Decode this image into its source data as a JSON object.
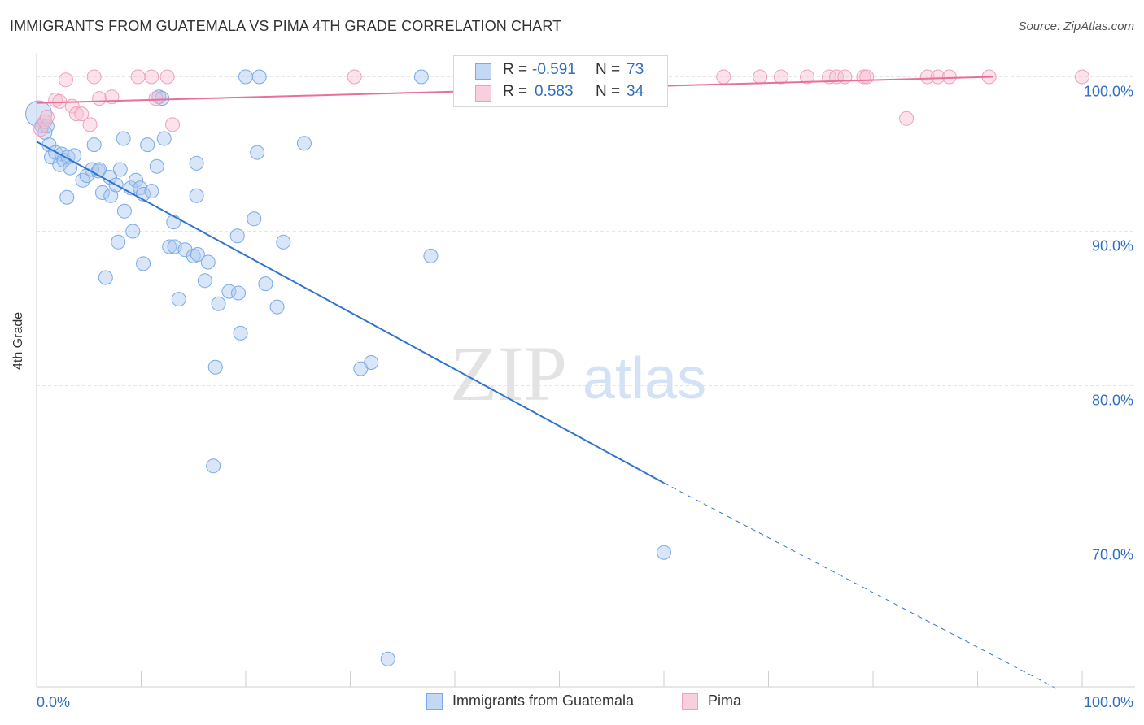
{
  "header": {
    "title": "IMMIGRANTS FROM GUATEMALA VS PIMA 4TH GRADE CORRELATION CHART",
    "source": "Source: ZipAtlas.com"
  },
  "watermark": {
    "zip": "ZIP",
    "atlas": "atlas"
  },
  "legend": {
    "r_label": "R =",
    "n_label": "N =",
    "rows": [
      {
        "series": "Immigrants from Guatemala",
        "r": "-0.591",
        "n": "73",
        "color": "#7aaae8"
      },
      {
        "series": "Pima",
        "r": "0.583",
        "n": "34",
        "color": "#f0a0bc"
      }
    ]
  },
  "bottom_legend": [
    {
      "label": "Immigrants from Guatemala",
      "color": "#7aaae8"
    },
    {
      "label": "Pima",
      "color": "#f0a0bc"
    }
  ],
  "chart_data": {
    "type": "scatter",
    "title": "IMMIGRANTS FROM GUATEMALA VS PIMA 4TH GRADE CORRELATION CHART",
    "xlabel": "",
    "ylabel": "4th Grade",
    "xlim": [
      0,
      100
    ],
    "ylim": [
      60.5,
      101.5
    ],
    "x_tick_labels": [
      "0.0%",
      "100.0%"
    ],
    "y_ticks": [
      70,
      80,
      90,
      100
    ],
    "y_tick_labels": [
      "70.0%",
      "80.0%",
      "90.0%",
      "100.0%"
    ],
    "grid": true,
    "legend_position": "top-center",
    "series": [
      {
        "name": "Immigrants from Guatemala",
        "color": "#7aaae8",
        "line_color": "#2f74d0",
        "trend": {
          "x": [
            0,
            60
          ],
          "y": [
            95.8,
            73.7
          ],
          "dashed_to": [
            97.5,
            60.4
          ]
        },
        "points": [
          [
            0.2,
            97.6
          ],
          [
            0.5,
            96.8
          ],
          [
            0.8,
            96.4
          ],
          [
            1.2,
            95.6
          ],
          [
            1.4,
            94.8
          ],
          [
            1.8,
            95.1
          ],
          [
            2.2,
            94.3
          ],
          [
            2.4,
            95.0
          ],
          [
            2.6,
            94.6
          ],
          [
            3.0,
            94.8
          ],
          [
            3.2,
            94.1
          ],
          [
            3.6,
            94.9
          ],
          [
            4.4,
            93.3
          ],
          [
            4.8,
            93.6
          ],
          [
            5.3,
            94.0
          ],
          [
            5.5,
            95.6
          ],
          [
            5.9,
            93.9
          ],
          [
            6.0,
            94.0
          ],
          [
            6.3,
            92.5
          ],
          [
            7.0,
            93.5
          ],
          [
            7.1,
            92.3
          ],
          [
            7.6,
            93.0
          ],
          [
            8.0,
            94.0
          ],
          [
            8.3,
            96.0
          ],
          [
            8.4,
            91.3
          ],
          [
            9.0,
            92.8
          ],
          [
            9.2,
            90.0
          ],
          [
            9.5,
            93.3
          ],
          [
            9.9,
            92.8
          ],
          [
            10.2,
            92.4
          ],
          [
            10.6,
            95.6
          ],
          [
            11.0,
            92.6
          ],
          [
            11.5,
            94.2
          ],
          [
            11.7,
            98.7
          ],
          [
            12.0,
            98.6
          ],
          [
            12.2,
            96.0
          ],
          [
            12.7,
            89.0
          ],
          [
            13.1,
            90.6
          ],
          [
            13.2,
            89.0
          ],
          [
            13.6,
            85.6
          ],
          [
            14.2,
            88.8
          ],
          [
            15.0,
            88.4
          ],
          [
            15.3,
            92.3
          ],
          [
            15.3,
            94.4
          ],
          [
            15.4,
            88.5
          ],
          [
            16.1,
            86.8
          ],
          [
            16.4,
            88.0
          ],
          [
            16.9,
            74.8
          ],
          [
            17.1,
            81.2
          ],
          [
            17.4,
            85.3
          ],
          [
            18.4,
            86.1
          ],
          [
            19.3,
            86.0
          ],
          [
            19.2,
            89.7
          ],
          [
            19.5,
            83.4
          ],
          [
            20.0,
            100.0
          ],
          [
            20.8,
            90.8
          ],
          [
            21.1,
            95.1
          ],
          [
            21.3,
            100.0
          ],
          [
            21.9,
            86.6
          ],
          [
            23.0,
            85.1
          ],
          [
            23.6,
            89.3
          ],
          [
            25.6,
            95.7
          ],
          [
            31.0,
            81.1
          ],
          [
            32.0,
            81.5
          ],
          [
            33.6,
            62.3
          ],
          [
            36.8,
            100.0
          ],
          [
            37.7,
            88.4
          ],
          [
            60.0,
            69.2
          ],
          [
            6.6,
            87.0
          ],
          [
            7.8,
            89.3
          ],
          [
            10.2,
            87.9
          ],
          [
            1.0,
            96.8
          ],
          [
            2.9,
            92.2
          ]
        ]
      },
      {
        "name": "Pima",
        "color": "#f0a0bc",
        "line_color": "#e87096",
        "trend": {
          "x": [
            0,
            91.5
          ],
          "y": [
            98.3,
            100.0
          ]
        },
        "points": [
          [
            0.4,
            96.6
          ],
          [
            0.8,
            97.1
          ],
          [
            1.0,
            97.4
          ],
          [
            1.8,
            98.5
          ],
          [
            2.2,
            98.4
          ],
          [
            2.8,
            99.8
          ],
          [
            3.4,
            98.1
          ],
          [
            3.8,
            97.6
          ],
          [
            4.3,
            97.6
          ],
          [
            5.1,
            96.9
          ],
          [
            5.5,
            100.0
          ],
          [
            6.0,
            98.6
          ],
          [
            7.2,
            98.7
          ],
          [
            9.7,
            100.0
          ],
          [
            11.0,
            100.0
          ],
          [
            11.4,
            98.6
          ],
          [
            12.5,
            100.0
          ],
          [
            13.0,
            96.9
          ],
          [
            30.4,
            100.0
          ],
          [
            65.7,
            100.0
          ],
          [
            69.2,
            100.0
          ],
          [
            71.2,
            100.0
          ],
          [
            73.7,
            100.0
          ],
          [
            75.8,
            100.0
          ],
          [
            76.5,
            100.0
          ],
          [
            77.3,
            100.0
          ],
          [
            79.1,
            100.0
          ],
          [
            79.4,
            100.0
          ],
          [
            83.2,
            97.3
          ],
          [
            85.2,
            100.0
          ],
          [
            86.2,
            100.0
          ],
          [
            87.3,
            100.0
          ],
          [
            91.1,
            100.0
          ],
          [
            100.0,
            100.0
          ]
        ]
      }
    ]
  }
}
